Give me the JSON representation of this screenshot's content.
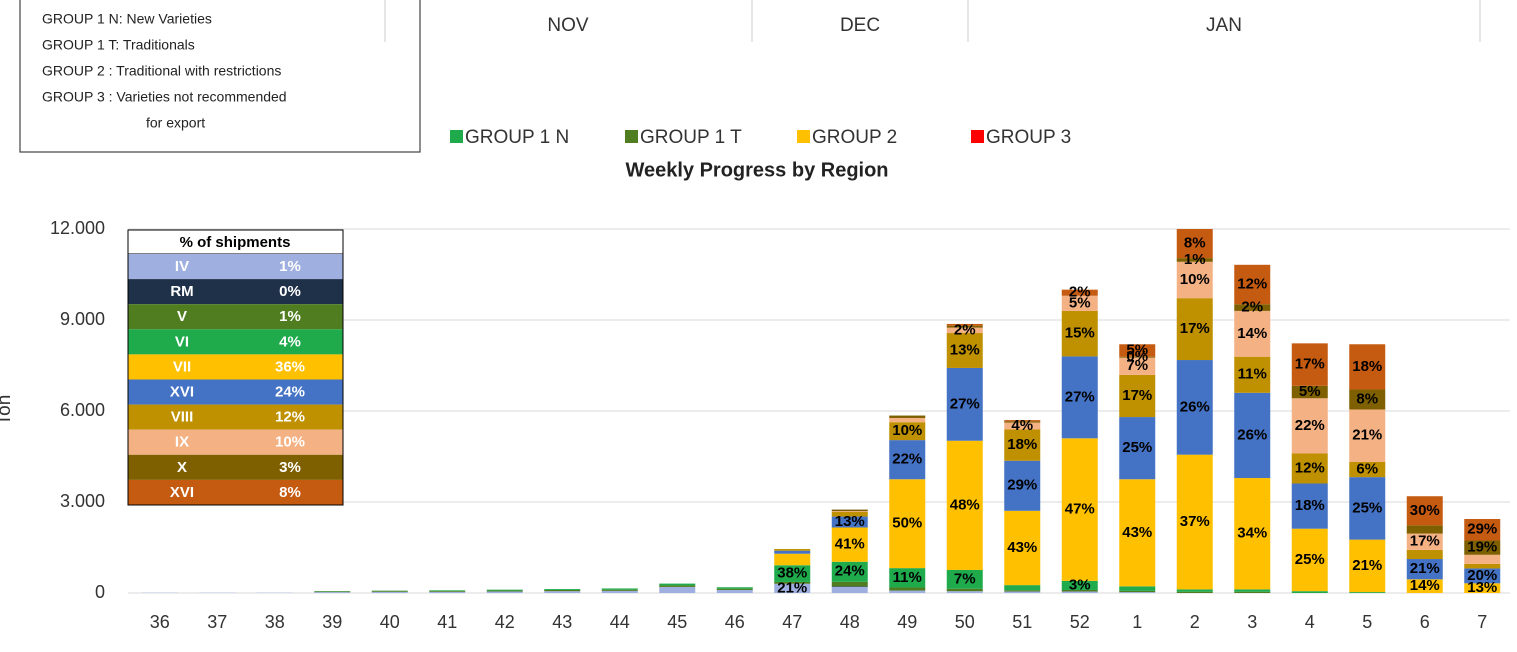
{
  "header": {
    "group_notes": [
      "GROUP 1 N: New Varieties",
      "GROUP 1 T: Traditionals",
      "GROUP 2  : Traditional with restrictions",
      "GROUP 3  : Varieties not recommended",
      "for export"
    ],
    "months": [
      "NOV",
      "DEC",
      "JAN"
    ],
    "groups": [
      {
        "name": "GROUP 1 N",
        "color": "#1faa4c"
      },
      {
        "name": "GROUP 1 T",
        "color": "#4f7d1f"
      },
      {
        "name": "GROUP 2",
        "color": "#ffc000"
      },
      {
        "name": "GROUP 3",
        "color": "#ff0000"
      }
    ]
  },
  "chart_data": {
    "type": "stacked_bar",
    "title": "Weekly Progress by Region",
    "y_label": "Ton",
    "categories": [
      "36",
      "37",
      "38",
      "39",
      "40",
      "41",
      "42",
      "43",
      "44",
      "45",
      "46",
      "47",
      "48",
      "49",
      "50",
      "51",
      "52",
      "1",
      "2",
      "3",
      "4",
      "5",
      "6",
      "7"
    ],
    "ylim": [
      0,
      12000
    ],
    "yticks": [
      0,
      {
        "value": 3000,
        "label": "3.000"
      },
      {
        "value": 6000,
        "label": "6.000"
      },
      {
        "value": 9000,
        "label": "9.000"
      },
      {
        "value": 12000,
        "label": "12.000"
      }
    ],
    "grid": true,
    "table_title": "% of shipments",
    "shares": [
      "1%",
      "0%",
      "1%",
      "4%",
      "36%",
      "24%",
      "12%",
      "10%",
      "3%",
      "8%"
    ],
    "series": [
      {
        "name": "IV",
        "color": "#9fb0e0",
        "values": [
          10,
          10,
          10,
          30,
          40,
          40,
          50,
          60,
          70,
          200,
          100,
          305,
          200,
          80,
          60,
          50,
          50,
          30,
          0,
          0,
          0,
          0,
          0,
          0
        ],
        "data_labels": [
          null,
          null,
          null,
          null,
          null,
          null,
          null,
          null,
          null,
          null,
          null,
          "21%",
          null,
          null,
          null,
          null,
          null,
          null,
          null,
          null,
          null,
          null,
          null,
          null
        ]
      },
      {
        "name": "RM",
        "color": "#1f3049",
        "values": [
          0,
          0,
          0,
          0,
          0,
          0,
          0,
          0,
          0,
          0,
          0,
          0,
          20,
          0,
          0,
          0,
          0,
          0,
          0,
          0,
          0,
          0,
          0,
          0
        ],
        "data_labels": [
          null,
          null,
          null,
          null,
          null,
          null,
          null,
          null,
          null,
          null,
          null,
          null,
          null,
          null,
          null,
          null,
          null,
          null,
          null,
          null,
          null,
          null,
          null,
          null
        ]
      },
      {
        "name": "V",
        "color": "#4f7d1f",
        "values": [
          0,
          0,
          0,
          20,
          30,
          30,
          30,
          40,
          40,
          50,
          40,
          60,
          150,
          100,
          80,
          40,
          50,
          40,
          40,
          40,
          0,
          0,
          0,
          0
        ],
        "data_labels": [
          null,
          null,
          null,
          null,
          null,
          null,
          null,
          null,
          null,
          null,
          null,
          null,
          null,
          null,
          null,
          null,
          null,
          null,
          null,
          null,
          null,
          null,
          null,
          null
        ]
      },
      {
        "name": "VI",
        "color": "#1faa4c",
        "values": [
          0,
          0,
          0,
          10,
          10,
          20,
          30,
          30,
          40,
          60,
          50,
          550,
          660,
          640,
          620,
          170,
          300,
          150,
          80,
          80,
          60,
          30,
          0,
          0
        ],
        "data_labels": [
          null,
          null,
          null,
          null,
          null,
          null,
          null,
          null,
          null,
          null,
          null,
          "38%",
          "24%",
          "11%",
          "7%",
          null,
          "3%",
          null,
          null,
          null,
          null,
          null,
          null,
          null
        ]
      },
      {
        "name": "VII",
        "color": "#ffc000",
        "values": [
          0,
          0,
          0,
          0,
          0,
          0,
          0,
          0,
          0,
          0,
          0,
          380,
          1130,
          2930,
          4260,
          2450,
          4700,
          3530,
          4440,
          3670,
          2060,
          1730,
          450,
          320
        ],
        "data_labels": [
          null,
          null,
          null,
          null,
          null,
          null,
          null,
          null,
          null,
          null,
          null,
          null,
          "41%",
          "50%",
          "48%",
          "43%",
          "47%",
          "43%",
          "37%",
          "34%",
          "25%",
          "21%",
          "14%",
          "13%"
        ]
      },
      {
        "name": "XVI",
        "color": "#4472c4",
        "values": [
          0,
          0,
          0,
          0,
          0,
          0,
          0,
          0,
          0,
          0,
          0,
          100,
          360,
          1290,
          2400,
          1650,
          2700,
          2050,
          3120,
          2810,
          1490,
          2060,
          670,
          490
        ],
        "data_labels": [
          null,
          null,
          null,
          null,
          null,
          null,
          null,
          null,
          null,
          null,
          null,
          null,
          "13%",
          "22%",
          "27%",
          "29%",
          "27%",
          "25%",
          "26%",
          "26%",
          "18%",
          "25%",
          "21%",
          "20%"
        ]
      },
      {
        "name": "VIII",
        "color": "#bf9000",
        "values": [
          0,
          0,
          0,
          0,
          0,
          0,
          0,
          0,
          0,
          0,
          0,
          55,
          150,
          590,
          1150,
          1030,
          1500,
          1390,
          2040,
          1190,
          990,
          500,
          300,
          150
        ],
        "data_labels": [
          null,
          null,
          null,
          null,
          null,
          null,
          null,
          null,
          null,
          null,
          null,
          null,
          null,
          "10%",
          "13%",
          "18%",
          "15%",
          "17%",
          "17%",
          "11%",
          "12%",
          "6%",
          null,
          null
        ]
      },
      {
        "name": "IX",
        "color": "#f4b183",
        "values": [
          0,
          0,
          0,
          0,
          0,
          0,
          0,
          0,
          0,
          0,
          0,
          0,
          30,
          140,
          180,
          230,
          500,
          570,
          1200,
          1510,
          1820,
          1730,
          540,
          300
        ],
        "data_labels": [
          null,
          null,
          null,
          null,
          null,
          null,
          null,
          null,
          null,
          null,
          null,
          null,
          null,
          null,
          "2%",
          "4%",
          "5%",
          "7%",
          "10%",
          "14%",
          "22%",
          "21%",
          "17%",
          null
        ]
      },
      {
        "name": "X",
        "color": "#7f6000",
        "values": [
          0,
          0,
          0,
          0,
          0,
          0,
          0,
          0,
          0,
          0,
          0,
          0,
          50,
          80,
          60,
          40,
          0,
          30,
          120,
          220,
          410,
          660,
          270,
          470
        ],
        "data_labels": [
          null,
          null,
          null,
          null,
          null,
          null,
          null,
          null,
          null,
          null,
          null,
          null,
          null,
          null,
          null,
          null,
          null,
          "0%",
          "1%",
          "2%",
          "5%",
          "8%",
          null,
          "19%"
        ]
      },
      {
        "name": "XVI",
        "color": "#c55a11",
        "values": [
          0,
          0,
          0,
          0,
          0,
          0,
          0,
          0,
          0,
          0,
          0,
          0,
          0,
          0,
          60,
          40,
          200,
          410,
          960,
          1300,
          1400,
          1490,
          960,
          710
        ],
        "data_labels": [
          null,
          null,
          null,
          null,
          null,
          null,
          null,
          null,
          null,
          null,
          null,
          null,
          null,
          null,
          null,
          null,
          "2%",
          "5%",
          "8%",
          "12%",
          "17%",
          "18%",
          "30%",
          "29%"
        ]
      }
    ]
  }
}
